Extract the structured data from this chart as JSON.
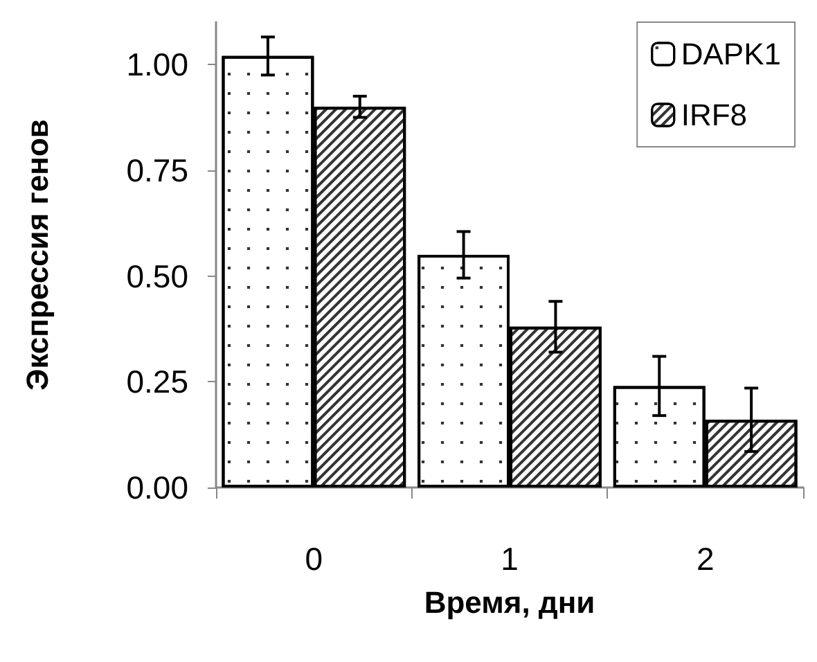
{
  "chart_data": {
    "type": "bar",
    "xlabel": "Время, дни",
    "ylabel": "Экспрессия генов",
    "categories": [
      "0",
      "1",
      "2"
    ],
    "series": [
      {
        "name": "DAPK1",
        "color": "#ffffff",
        "values": [
          1.02,
          0.55,
          0.24
        ],
        "errors": [
          0.045,
          0.055,
          0.07
        ]
      },
      {
        "name": "IRF8",
        "color": "#ffffff",
        "values": [
          0.9,
          0.38,
          0.16
        ],
        "errors": [
          0.025,
          0.06,
          0.075
        ]
      }
    ],
    "ylim": [
      0,
      1.1
    ],
    "yticks": [
      {
        "value": 0,
        "label": "0.00"
      },
      0.25,
      {
        "value": 0.5,
        "label": "0.50"
      },
      0.75,
      {
        "value": 1,
        "label": "1.00"
      }
    ],
    "grid": false,
    "legend": "top right"
  }
}
